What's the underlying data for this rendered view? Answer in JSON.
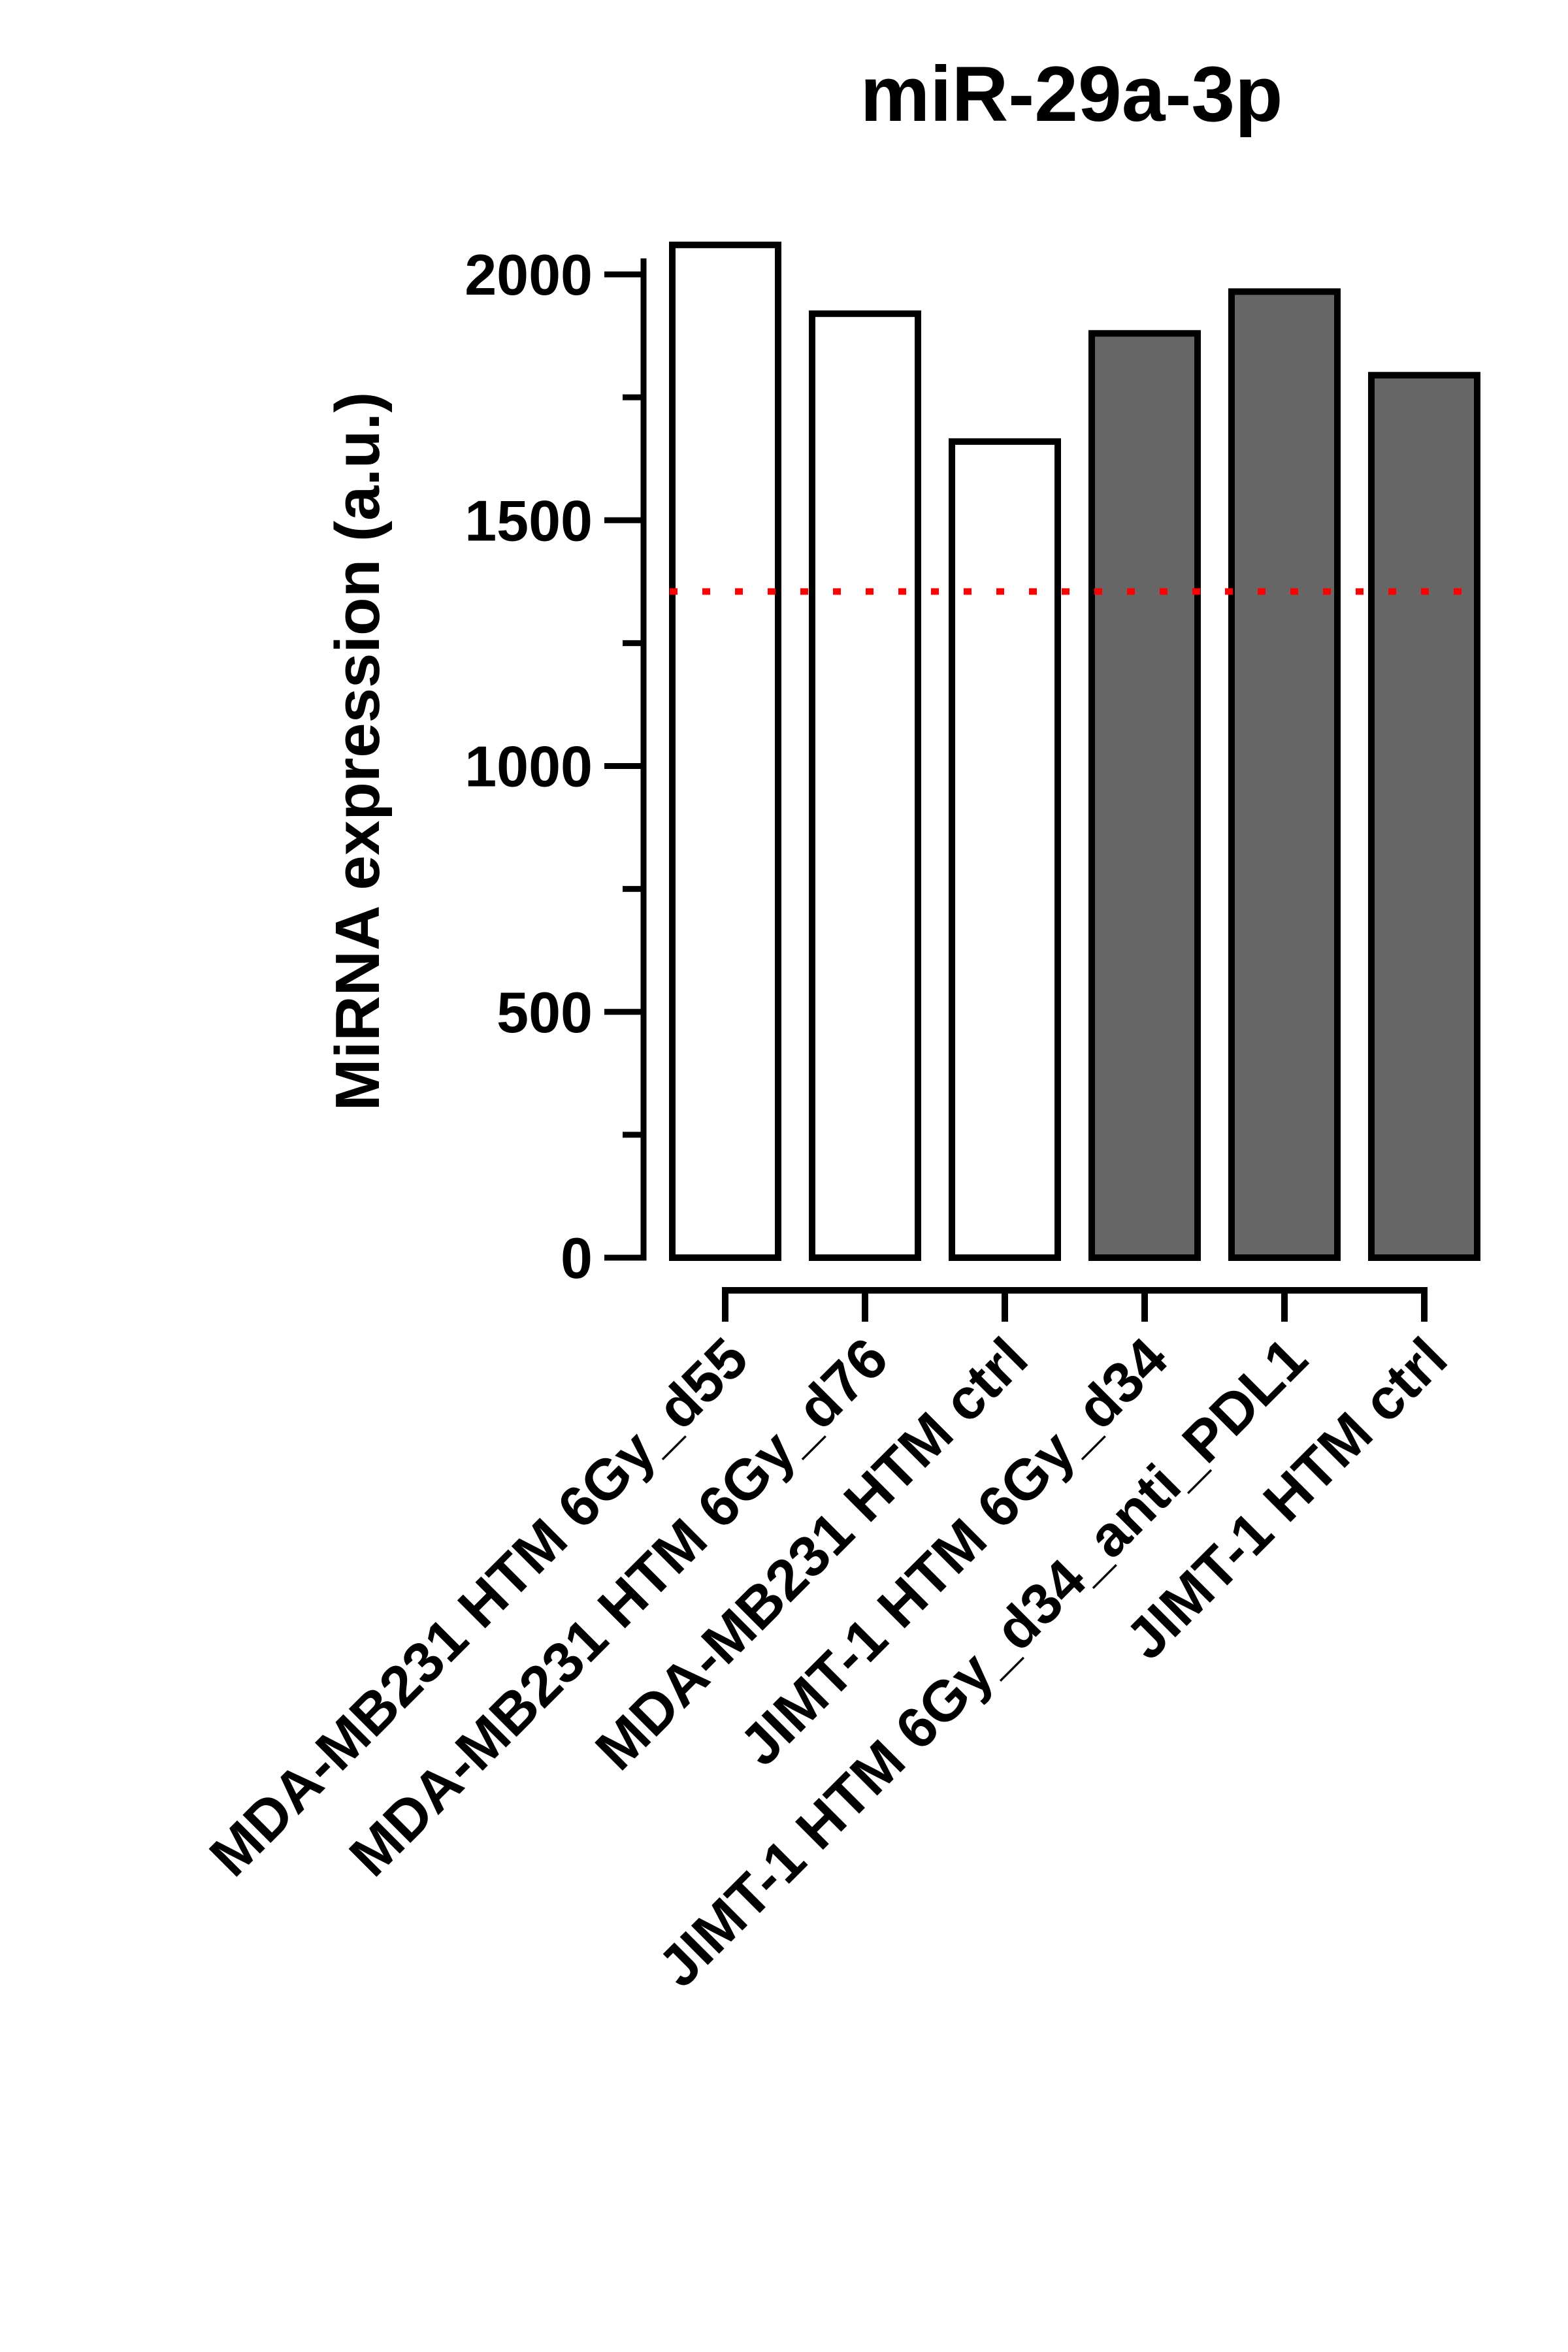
{
  "chart_data": {
    "type": "bar",
    "title": "miR-29a-3p",
    "xlabel": "",
    "ylabel": "MiRNA expression (a.u.)",
    "ylim": [
      0,
      2000
    ],
    "yticks": [
      0,
      500,
      1000,
      1500,
      2000
    ],
    "categories": [
      "MDA-MB231 HTM 6Gy_d55",
      "MDA-MB231 HTM 6Gy_d76",
      "MDA-MB231 HTM ctrl",
      "JIMT-1 HTM 6Gy_d34",
      "JIMT-1 HTM 6Gy_d34_anti_PDL1",
      "JIMT-1 HTM ctrl"
    ],
    "values": [
      2060,
      1920,
      1660,
      1880,
      1965,
      1795
    ],
    "bar_fills": [
      "#ffffff",
      "#ffffff",
      "#ffffff",
      "#666666",
      "#666666",
      "#666666"
    ],
    "threshold": {
      "value": 1355,
      "color": "#ff0000",
      "style": "dotted"
    },
    "grid": false,
    "legend": "none"
  }
}
